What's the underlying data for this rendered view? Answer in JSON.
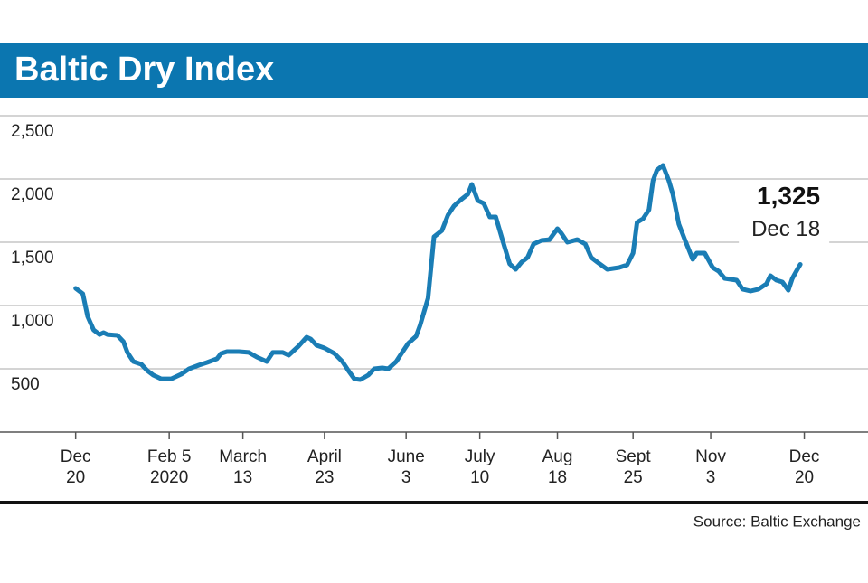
{
  "chart_data": {
    "type": "line",
    "title": "Baltic Dry Index",
    "source": "Source: Baltic Exchange",
    "xlim": [
      -38,
      398
    ],
    "ylim": [
      0,
      2500
    ],
    "yticks": [
      500,
      {
        "value": 1000,
        "label": "1,000"
      },
      {
        "value": 1500,
        "label": "1,500"
      },
      {
        "value": 2000,
        "label": "2,000"
      },
      {
        "value": 2500,
        "label": "2,500"
      }
    ],
    "xticks": [
      {
        "value": 0,
        "label": [
          "Dec",
          "20"
        ]
      },
      {
        "value": 47,
        "label": [
          "Feb 5",
          "2020"
        ]
      },
      {
        "value": 84,
        "label": [
          "March",
          "13"
        ]
      },
      {
        "value": 125,
        "label": [
          "April",
          "23"
        ]
      },
      {
        "value": 166,
        "label": [
          "June",
          "3"
        ]
      },
      {
        "value": 203,
        "label": [
          "July",
          "10"
        ]
      },
      {
        "value": 242,
        "label": [
          "Aug",
          "18"
        ]
      },
      {
        "value": 280,
        "label": [
          "Sept",
          "25"
        ]
      },
      {
        "value": 319,
        "label": [
          "Nov",
          "3"
        ]
      },
      {
        "value": 366,
        "label": [
          "Dec",
          "20"
        ]
      }
    ],
    "grid": true,
    "annotation": "Dec 18",
    "series": [
      {
        "name": "Baltic Dry Index",
        "color": "#1a7db5",
        "x": [
          0,
          3.6,
          6,
          9,
          12,
          14,
          16,
          21,
          24,
          26,
          29,
          33,
          36,
          39,
          43,
          48,
          53,
          57,
          62,
          66,
          71,
          73,
          76,
          82,
          87,
          91,
          96,
          99,
          104,
          107,
          112,
          116,
          118,
          121,
          125,
          130,
          134,
          137,
          140,
          143,
          147,
          150,
          154,
          157,
          161,
          164,
          167,
          171,
          173,
          177,
          180,
          184,
          187,
          190,
          193,
          197,
          199,
          202,
          205,
          208,
          211,
          215,
          218,
          221,
          224,
          227,
          230,
          234,
          238,
          242,
          244,
          247,
          252,
          256,
          259,
          262,
          267,
          273,
          277,
          280,
          282,
          285,
          288,
          290,
          292,
          295,
          298,
          300,
          303,
          306,
          310,
          312,
          316,
          320,
          323,
          326,
          332,
          335,
          339,
          343,
          347,
          349,
          352,
          355,
          358,
          360,
          362,
          364
        ],
        "values": [
          1136,
          1093,
          914,
          807,
          771,
          786,
          771,
          764,
          714,
          629,
          557,
          536,
          486,
          450,
          421,
          421,
          457,
          500,
          529,
          550,
          579,
          621,
          636,
          636,
          629,
          593,
          557,
          629,
          629,
          607,
          679,
          750,
          736,
          686,
          664,
          621,
          557,
          486,
          421,
          414,
          450,
          500,
          507,
          500,
          557,
          629,
          700,
          757,
          843,
          1057,
          1543,
          1593,
          1714,
          1786,
          1829,
          1879,
          1957,
          1829,
          1807,
          1700,
          1700,
          1486,
          1329,
          1286,
          1343,
          1379,
          1486,
          1514,
          1521,
          1607,
          1571,
          1500,
          1521,
          1486,
          1379,
          1343,
          1286,
          1300,
          1321,
          1414,
          1657,
          1686,
          1757,
          1986,
          2071,
          2107,
          1986,
          1879,
          1643,
          1521,
          1364,
          1414,
          1414,
          1300,
          1271,
          1214,
          1200,
          1129,
          1114,
          1129,
          1171,
          1236,
          1200,
          1186,
          1121,
          1214,
          1271,
          1325
        ],
        "value_labels": [
          null,
          null,
          null,
          null,
          null,
          null,
          null,
          null,
          null,
          null,
          null,
          null,
          null,
          null,
          null,
          null,
          null,
          null,
          null,
          null,
          null,
          null,
          null,
          null,
          null,
          null,
          null,
          null,
          null,
          null,
          null,
          null,
          null,
          null,
          null,
          null,
          null,
          null,
          null,
          null,
          null,
          null,
          null,
          null,
          null,
          null,
          null,
          null,
          null,
          null,
          null,
          null,
          null,
          null,
          null,
          null,
          null,
          null,
          null,
          null,
          null,
          null,
          null,
          null,
          null,
          null,
          null,
          null,
          null,
          null,
          null,
          null,
          null,
          null,
          null,
          null,
          null,
          null,
          null,
          null,
          null,
          null,
          null,
          null,
          null,
          null,
          null,
          null,
          null,
          null,
          null,
          null,
          null,
          null,
          null,
          null,
          null,
          null,
          null,
          null,
          null,
          null,
          null,
          null,
          null,
          null,
          null,
          "1,325"
        ]
      }
    ]
  }
}
